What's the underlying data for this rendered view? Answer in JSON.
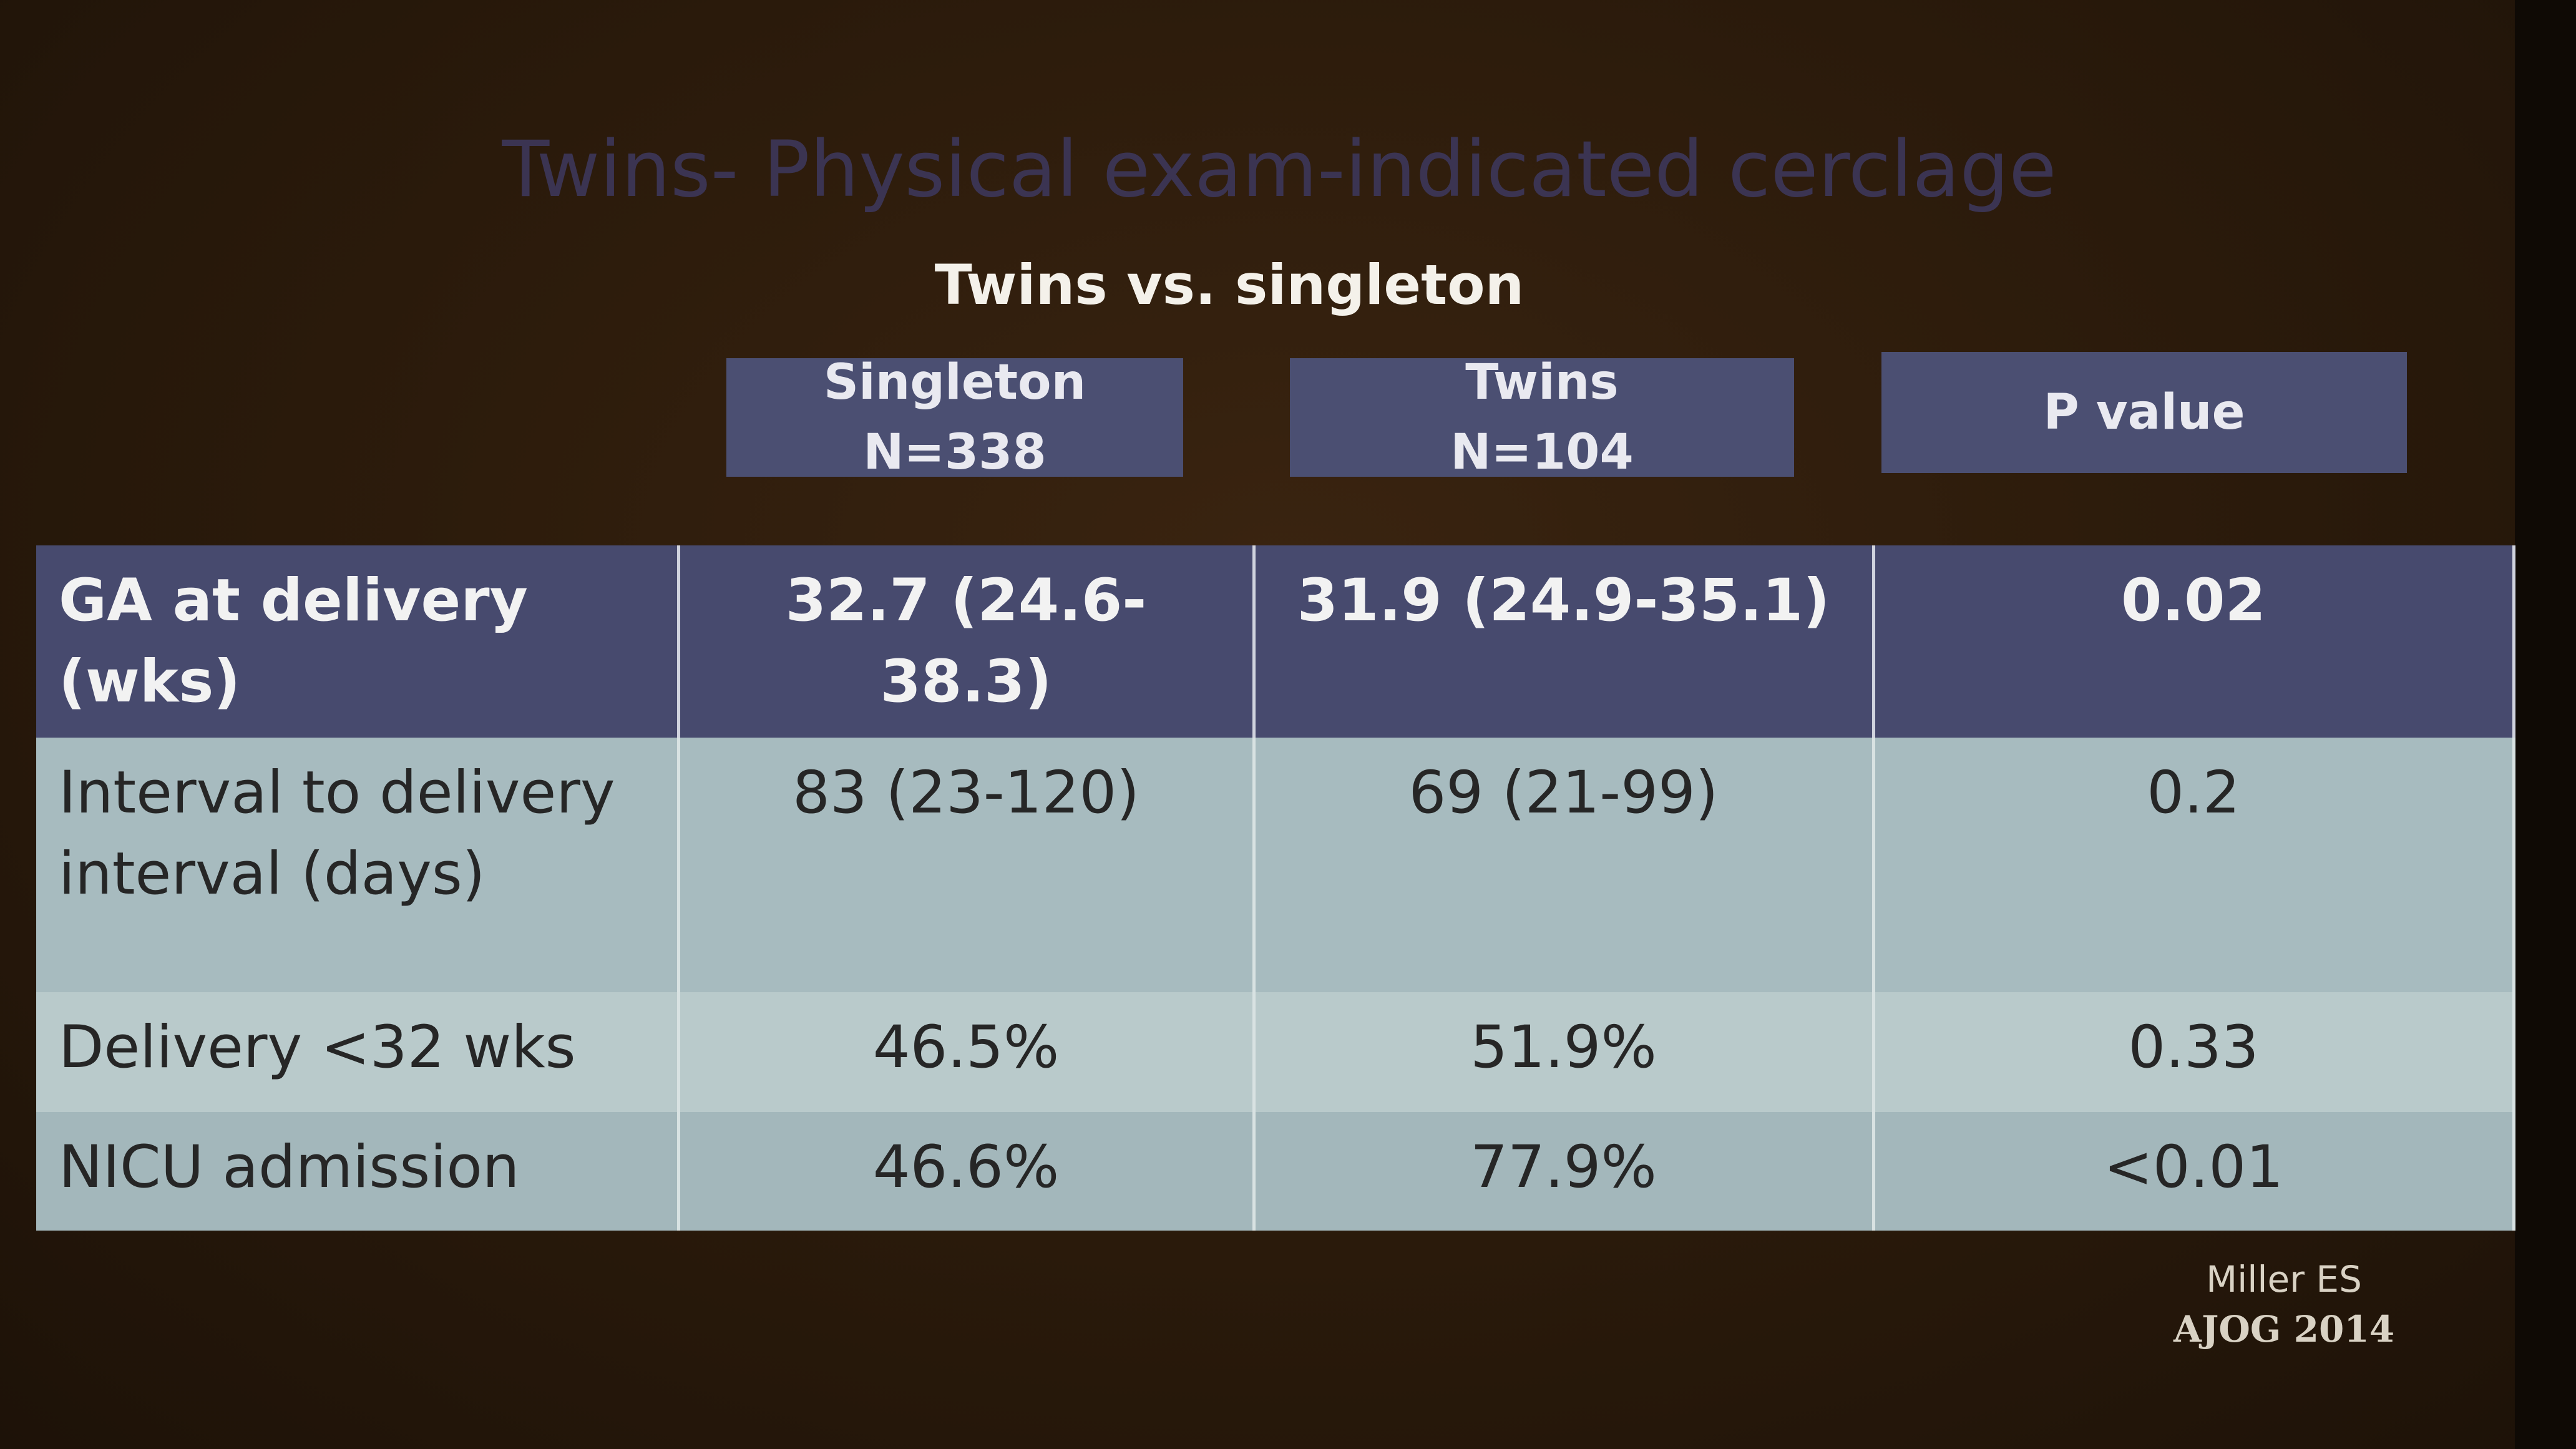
{
  "title": "Twins- Physical exam-indicated cerclage",
  "subtitle": "Twins vs. singleton",
  "table": {
    "header": [
      [
        "Singleton",
        "N=338"
      ],
      [
        "Twins",
        "N=104"
      ],
      [
        "P value"
      ]
    ],
    "rows": [
      [
        "GA at delivery (wks)",
        "32.7 (24.6-38.3)",
        "31.9 (24.9-35.1)",
        "0.02"
      ],
      [
        "Interval to delivery interval (days)",
        "83 (23-120)",
        "69 (21-99)",
        "0.2"
      ],
      [
        "Delivery <32 wks",
        "46.5%",
        "51.9%",
        "0.33"
      ],
      [
        "NICU admission",
        "46.6%",
        "77.9%",
        "<0.01"
      ]
    ]
  },
  "citation": [
    "Miller ES",
    "AJOG 2014"
  ]
}
